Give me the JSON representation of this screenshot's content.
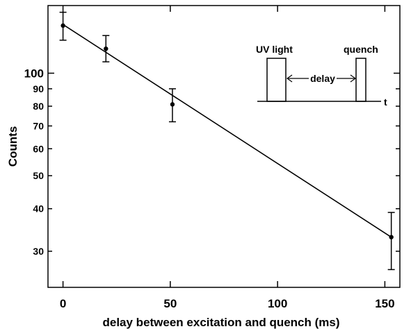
{
  "chart_data": {
    "type": "scatter",
    "title": "",
    "xlabel": "delay between excitation and quench (ms)",
    "ylabel": "Counts",
    "x_scale": "linear",
    "y_scale": "log",
    "xlim": [
      -7,
      157
    ],
    "ylim": [
      23.5,
      158
    ],
    "grid": false,
    "x_ticks": [
      {
        "value": 0,
        "label": "0"
      },
      {
        "value": 50,
        "label": "50"
      },
      {
        "value": 100,
        "label": "100"
      },
      {
        "value": 150,
        "label": "150"
      }
    ],
    "y_ticks": [
      {
        "value": 30,
        "label": "30",
        "major": false
      },
      {
        "value": 40,
        "label": "40",
        "major": false
      },
      {
        "value": 50,
        "label": "50",
        "major": false
      },
      {
        "value": 60,
        "label": "60",
        "major": false
      },
      {
        "value": 70,
        "label": "70",
        "major": false
      },
      {
        "value": 80,
        "label": "80",
        "major": false
      },
      {
        "value": 90,
        "label": "90",
        "major": false
      },
      {
        "value": 100,
        "label": "100",
        "major": true
      }
    ],
    "points": [
      {
        "x": 0,
        "y": 138,
        "err_low": 125,
        "err_high": 151
      },
      {
        "x": 20,
        "y": 118,
        "err_low": 108,
        "err_high": 129
      },
      {
        "x": 51,
        "y": 81,
        "err_low": 72,
        "err_high": 90
      },
      {
        "x": 153,
        "y": 33,
        "err_low": 26.5,
        "err_high": 39
      }
    ],
    "fit_line": {
      "x": [
        0,
        153
      ],
      "y": [
        139,
        33
      ]
    },
    "inset": {
      "uv_label": "UV light",
      "quench_label": "quench",
      "delay_label": "delay",
      "time_label": "t"
    }
  }
}
